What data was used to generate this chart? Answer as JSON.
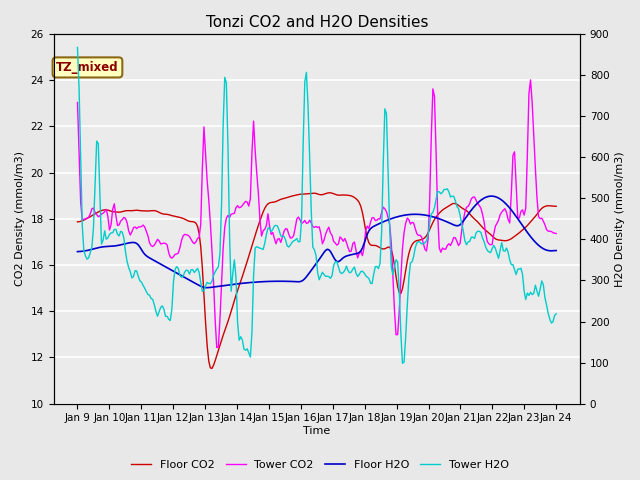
{
  "title": "Tonzi CO2 and H2O Densities",
  "xlabel": "Time",
  "ylabel_left": "CO2 Density (mmol/m3)",
  "ylabel_right": "H2O Density (mmol/m3)",
  "annotation_text": "TZ_mixed",
  "annotation_color": "#8B0000",
  "annotation_bg": "#FFFFC0",
  "annotation_border": "#8B6914",
  "ylim_left": [
    10,
    26
  ],
  "ylim_right": [
    0,
    900
  ],
  "xtick_labels": [
    "Jan 9",
    "Jan 10",
    "Jan 11",
    "Jan 12",
    "Jan 13",
    "Jan 14",
    "Jan 15",
    "Jan 16",
    "Jan 17",
    "Jan 18",
    "Jan 19",
    "Jan 20",
    "Jan 21",
    "Jan 22",
    "Jan 23",
    "Jan 24"
  ],
  "legend_entries": [
    "Floor CO2",
    "Tower CO2",
    "Floor H2O",
    "Tower H2O"
  ],
  "floor_co2_color": "#CC0000",
  "tower_co2_color": "#FF00FF",
  "floor_h2o_color": "#0000CC",
  "tower_h2o_color": "#00CCCC",
  "bg_color": "#E8E8E8",
  "plot_bg_color": "#EBEBEB",
  "grid_color": "#FFFFFF",
  "title_fontsize": 11,
  "label_fontsize": 8,
  "tick_fontsize": 7.5,
  "legend_fontsize": 8
}
